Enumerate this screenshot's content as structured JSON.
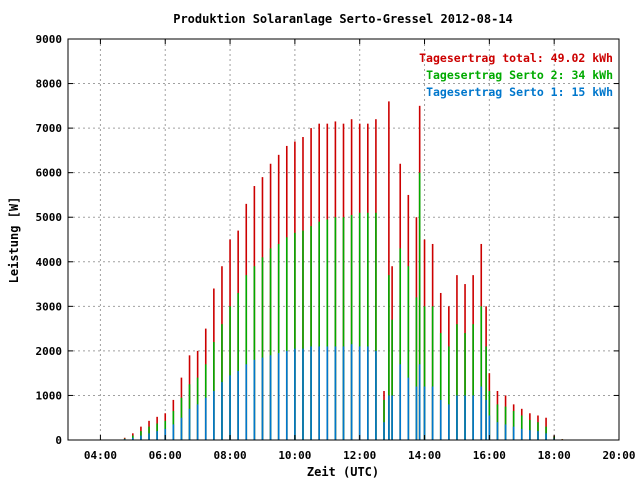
{
  "chart_data": {
    "type": "bar",
    "title": "Produktion Solaranlage Serto-Gressel 2012-08-14",
    "xlabel": "Zeit (UTC)",
    "ylabel": "Leistung [W]",
    "xlim": [
      3,
      20
    ],
    "ylim": [
      0,
      9000
    ],
    "grid": true,
    "legend_position": "top-right",
    "x_ticks": [
      {
        "value": 4,
        "label": "04:00"
      },
      {
        "value": 6,
        "label": "06:00"
      },
      {
        "value": 8,
        "label": "08:00"
      },
      {
        "value": 10,
        "label": "10:00"
      },
      {
        "value": 12,
        "label": "12:00"
      },
      {
        "value": 14,
        "label": "14:00"
      },
      {
        "value": 16,
        "label": "16:00"
      },
      {
        "value": 18,
        "label": "18:00"
      },
      {
        "value": 20,
        "label": "20:00"
      }
    ],
    "y_ticks": [
      {
        "value": 0,
        "label": "0"
      },
      {
        "value": 1000,
        "label": "1000"
      },
      {
        "value": 2000,
        "label": "2000"
      },
      {
        "value": 3000,
        "label": "3000"
      },
      {
        "value": 4000,
        "label": "4000"
      },
      {
        "value": 5000,
        "label": "5000"
      },
      {
        "value": 6000,
        "label": "6000"
      },
      {
        "value": 7000,
        "label": "7000"
      },
      {
        "value": 8000,
        "label": "8000"
      },
      {
        "value": 9000,
        "label": "9000"
      }
    ],
    "legend": [
      {
        "series": "total",
        "label": "Tagesertrag total: 49.02 kWh"
      },
      {
        "series": "serto2",
        "label": "Tagesertrag Serto 2: 34 kWh"
      },
      {
        "series": "serto1",
        "label": "Tagesertrag Serto 1: 15 kWh"
      }
    ],
    "series": [
      {
        "key": "total",
        "color": "#cc0000",
        "x": [
          4.75,
          5.0,
          5.25,
          5.5,
          5.75,
          6.0,
          6.25,
          6.5,
          6.75,
          7.0,
          7.25,
          7.5,
          7.75,
          8.0,
          8.25,
          8.5,
          8.75,
          9.0,
          9.25,
          9.5,
          9.75,
          10.0,
          10.25,
          10.5,
          10.75,
          11.0,
          11.25,
          11.5,
          11.75,
          12.0,
          12.25,
          12.5,
          12.75,
          12.9,
          13.0,
          13.25,
          13.5,
          13.75,
          13.85,
          14.0,
          14.25,
          14.5,
          14.75,
          15.0,
          15.25,
          15.5,
          15.75,
          15.9,
          16.0,
          16.25,
          16.5,
          16.75,
          17.0,
          17.25,
          17.5,
          17.75,
          18.0,
          18.25
        ],
        "values": [
          50,
          150,
          300,
          430,
          520,
          600,
          900,
          1400,
          1900,
          2000,
          2500,
          3400,
          3900,
          4500,
          4700,
          5300,
          5700,
          5900,
          6200,
          6400,
          6600,
          6700,
          6800,
          7000,
          7100,
          7100,
          7150,
          7100,
          7200,
          7100,
          7100,
          7200,
          1100,
          7600,
          3900,
          6200,
          5500,
          5000,
          7500,
          4500,
          4400,
          3300,
          3000,
          3700,
          3500,
          3700,
          4400,
          3000,
          1500,
          1100,
          1000,
          800,
          700,
          600,
          550,
          500,
          100,
          20
        ]
      },
      {
        "key": "serto2",
        "color": "#00aa00",
        "x": [
          4.75,
          5.0,
          5.25,
          5.5,
          5.75,
          6.0,
          6.25,
          6.5,
          6.75,
          7.0,
          7.25,
          7.5,
          7.75,
          8.0,
          8.25,
          8.5,
          8.75,
          9.0,
          9.25,
          9.5,
          9.75,
          10.0,
          10.25,
          10.5,
          10.75,
          11.0,
          11.25,
          11.5,
          11.75,
          12.0,
          12.25,
          12.5,
          12.75,
          12.9,
          13.0,
          13.25,
          13.5,
          13.75,
          13.85,
          14.0,
          14.25,
          14.5,
          14.75,
          15.0,
          15.25,
          15.5,
          15.75,
          15.9,
          16.0,
          16.25,
          16.5,
          16.75,
          17.0,
          17.25,
          17.5,
          17.75,
          18.0,
          18.25
        ],
        "values": [
          30,
          100,
          200,
          300,
          370,
          430,
          650,
          950,
          1250,
          1400,
          1700,
          2200,
          2600,
          3000,
          3300,
          3700,
          3900,
          4100,
          4300,
          4400,
          4550,
          4650,
          4700,
          4800,
          4900,
          4950,
          5000,
          5000,
          5050,
          5100,
          5100,
          5100,
          900,
          3700,
          2700,
          4300,
          3900,
          3200,
          6000,
          3000,
          3000,
          2400,
          2100,
          2600,
          2400,
          2600,
          3000,
          2100,
          1100,
          800,
          750,
          650,
          550,
          450,
          400,
          300,
          80,
          15
        ]
      },
      {
        "key": "serto1",
        "color": "#0077cc",
        "x": [
          4.75,
          5.0,
          5.25,
          5.5,
          5.75,
          6.0,
          6.25,
          6.5,
          6.75,
          7.0,
          7.25,
          7.5,
          7.75,
          8.0,
          8.25,
          8.5,
          8.75,
          9.0,
          9.25,
          9.5,
          9.75,
          10.0,
          10.25,
          10.5,
          10.75,
          11.0,
          11.25,
          11.5,
          11.75,
          12.0,
          12.25,
          12.5,
          12.75,
          12.9,
          13.0,
          13.25,
          13.5,
          13.75,
          13.85,
          14.0,
          14.25,
          14.5,
          14.75,
          15.0,
          15.25,
          15.5,
          15.75,
          15.9,
          16.0,
          16.25,
          16.5,
          16.75,
          17.0,
          17.25,
          17.5,
          17.75,
          18.0,
          18.25
        ],
        "values": [
          20,
          50,
          100,
          150,
          200,
          250,
          350,
          500,
          700,
          800,
          950,
          1100,
          1300,
          1450,
          1550,
          1700,
          1800,
          1850,
          1900,
          1950,
          2000,
          2050,
          2050,
          2100,
          2100,
          2100,
          2100,
          2100,
          2150,
          2100,
          2100,
          2000,
          400,
          1000,
          1000,
          1700,
          1400,
          1200,
          1700,
          1200,
          1200,
          900,
          800,
          1000,
          1000,
          1000,
          1200,
          900,
          550,
          400,
          350,
          300,
          250,
          220,
          200,
          150,
          40,
          10
        ]
      }
    ]
  }
}
